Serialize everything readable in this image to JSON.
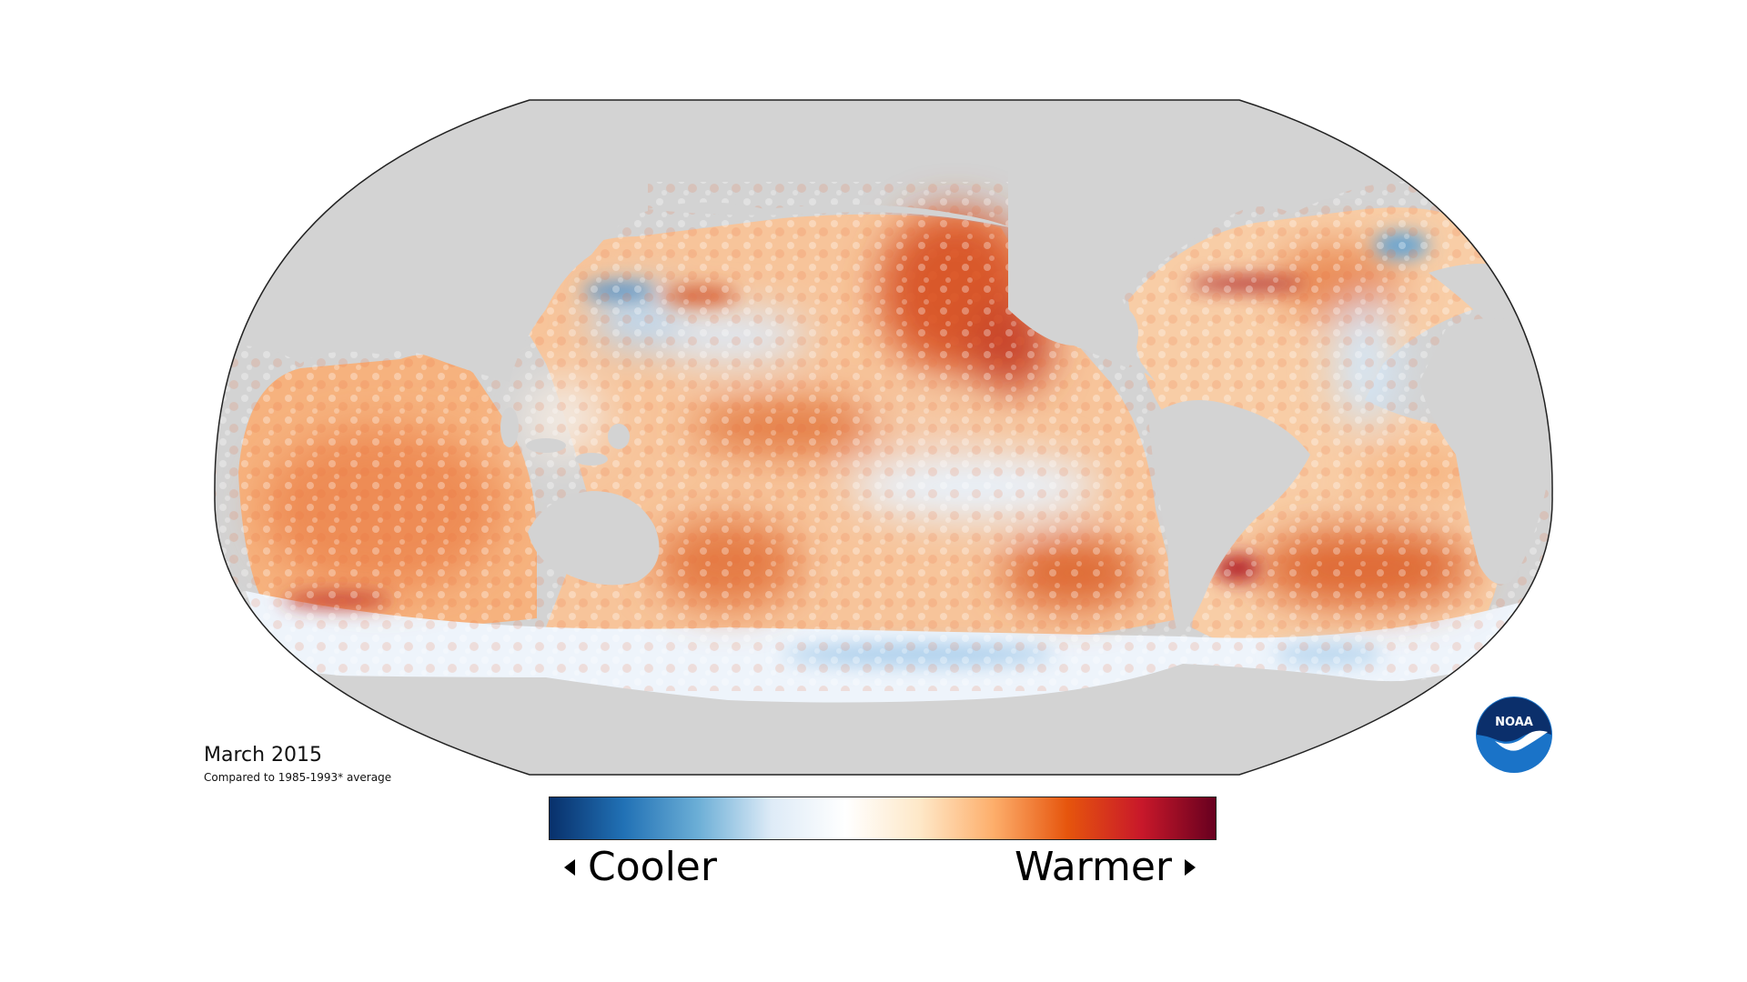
{
  "map": {
    "date_label": "March 2015",
    "comparison_label": "Compared to 1985-1993* average",
    "colors": {
      "land": "#d3d3d3",
      "coast_border": "#222222",
      "warm": "#c8452a",
      "warm_light": "#f3a86a",
      "neutral": "#fff8ee",
      "cool": "#8ec2e6",
      "cool_dark": "#2d7ec4"
    }
  },
  "legend": {
    "cooler_label": "Cooler",
    "warmer_label": "Warmer",
    "gradient_colors": [
      "#08306b",
      "#2171b5",
      "#6baed6",
      "#deebf7",
      "#ffffff",
      "#fee8c8",
      "#fdae6b",
      "#e6550d",
      "#c8182a",
      "#67001f"
    ]
  },
  "logo": {
    "text": "NOAA",
    "icon": "noaa-logo"
  }
}
